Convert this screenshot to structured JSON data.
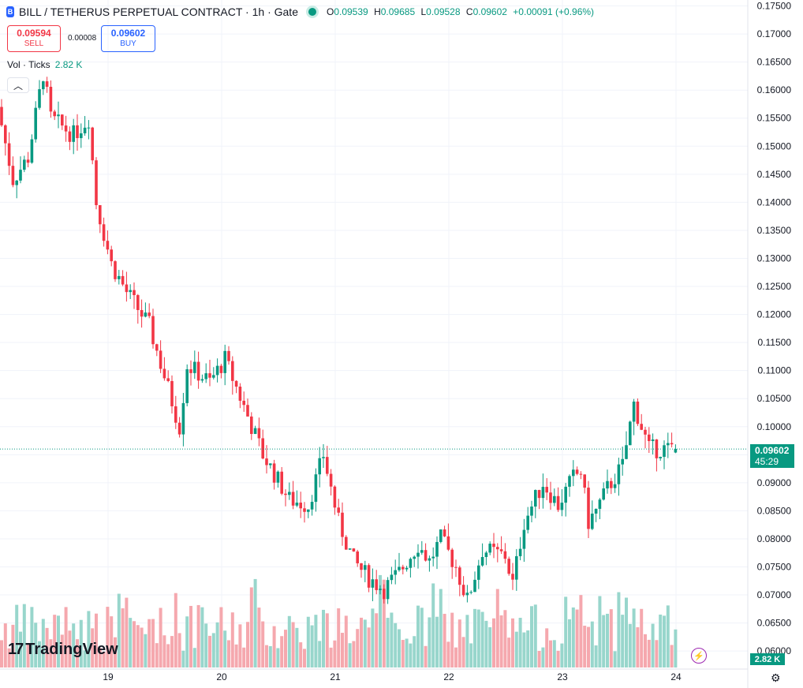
{
  "header": {
    "symbol_icon": "B",
    "title": "BILL / TETHERUS PERPETUAL CONTRACT · 1h · Gate",
    "status_icon": "market-open-dot",
    "ohlc": {
      "o_label": "O",
      "o": "0.09539",
      "h_label": "H",
      "h": "0.09685",
      "l_label": "L",
      "l": "0.09528",
      "c_label": "C",
      "c": "0.09602",
      "change": "+0.00091 (+0.96%)"
    }
  },
  "trade": {
    "sell_price": "0.09594",
    "sell_label": "SELL",
    "spread": "0.00008",
    "buy_price": "0.09602",
    "buy_label": "BUY"
  },
  "volume_legend": {
    "label": "Vol · Ticks",
    "value": "2.82 K"
  },
  "collapse_icon": "chevron-up-icon",
  "last_price": {
    "price": "0.09602",
    "countdown": "45:29"
  },
  "volume_tag": "2.82 K",
  "branding": {
    "logo_mark": "17",
    "name": "TradingView"
  },
  "colors": {
    "up": "#089981",
    "down": "#f23645",
    "vol_up": "#98d6cc",
    "vol_down": "#f5a8ae",
    "grid": "#f0f3fa"
  },
  "chart_data": {
    "type": "candlestick",
    "price_axis": {
      "ticks": [
        "0.17500",
        "0.17000",
        "0.16500",
        "0.16000",
        "0.15500",
        "0.15000",
        "0.14500",
        "0.14000",
        "0.13500",
        "0.13000",
        "0.12500",
        "0.12000",
        "0.11500",
        "0.11000",
        "0.10500",
        "0.10000",
        "0.09500",
        "0.09000",
        "0.08500",
        "0.08000",
        "0.07500",
        "0.07000",
        "0.06500",
        "0.06000"
      ],
      "range": [
        0.0596,
        0.1755
      ]
    },
    "time_axis": {
      "labels": [
        "19",
        "20",
        "21",
        "22",
        "23",
        "24"
      ]
    },
    "candles": [],
    "volume_max_ticks": 8000
  }
}
